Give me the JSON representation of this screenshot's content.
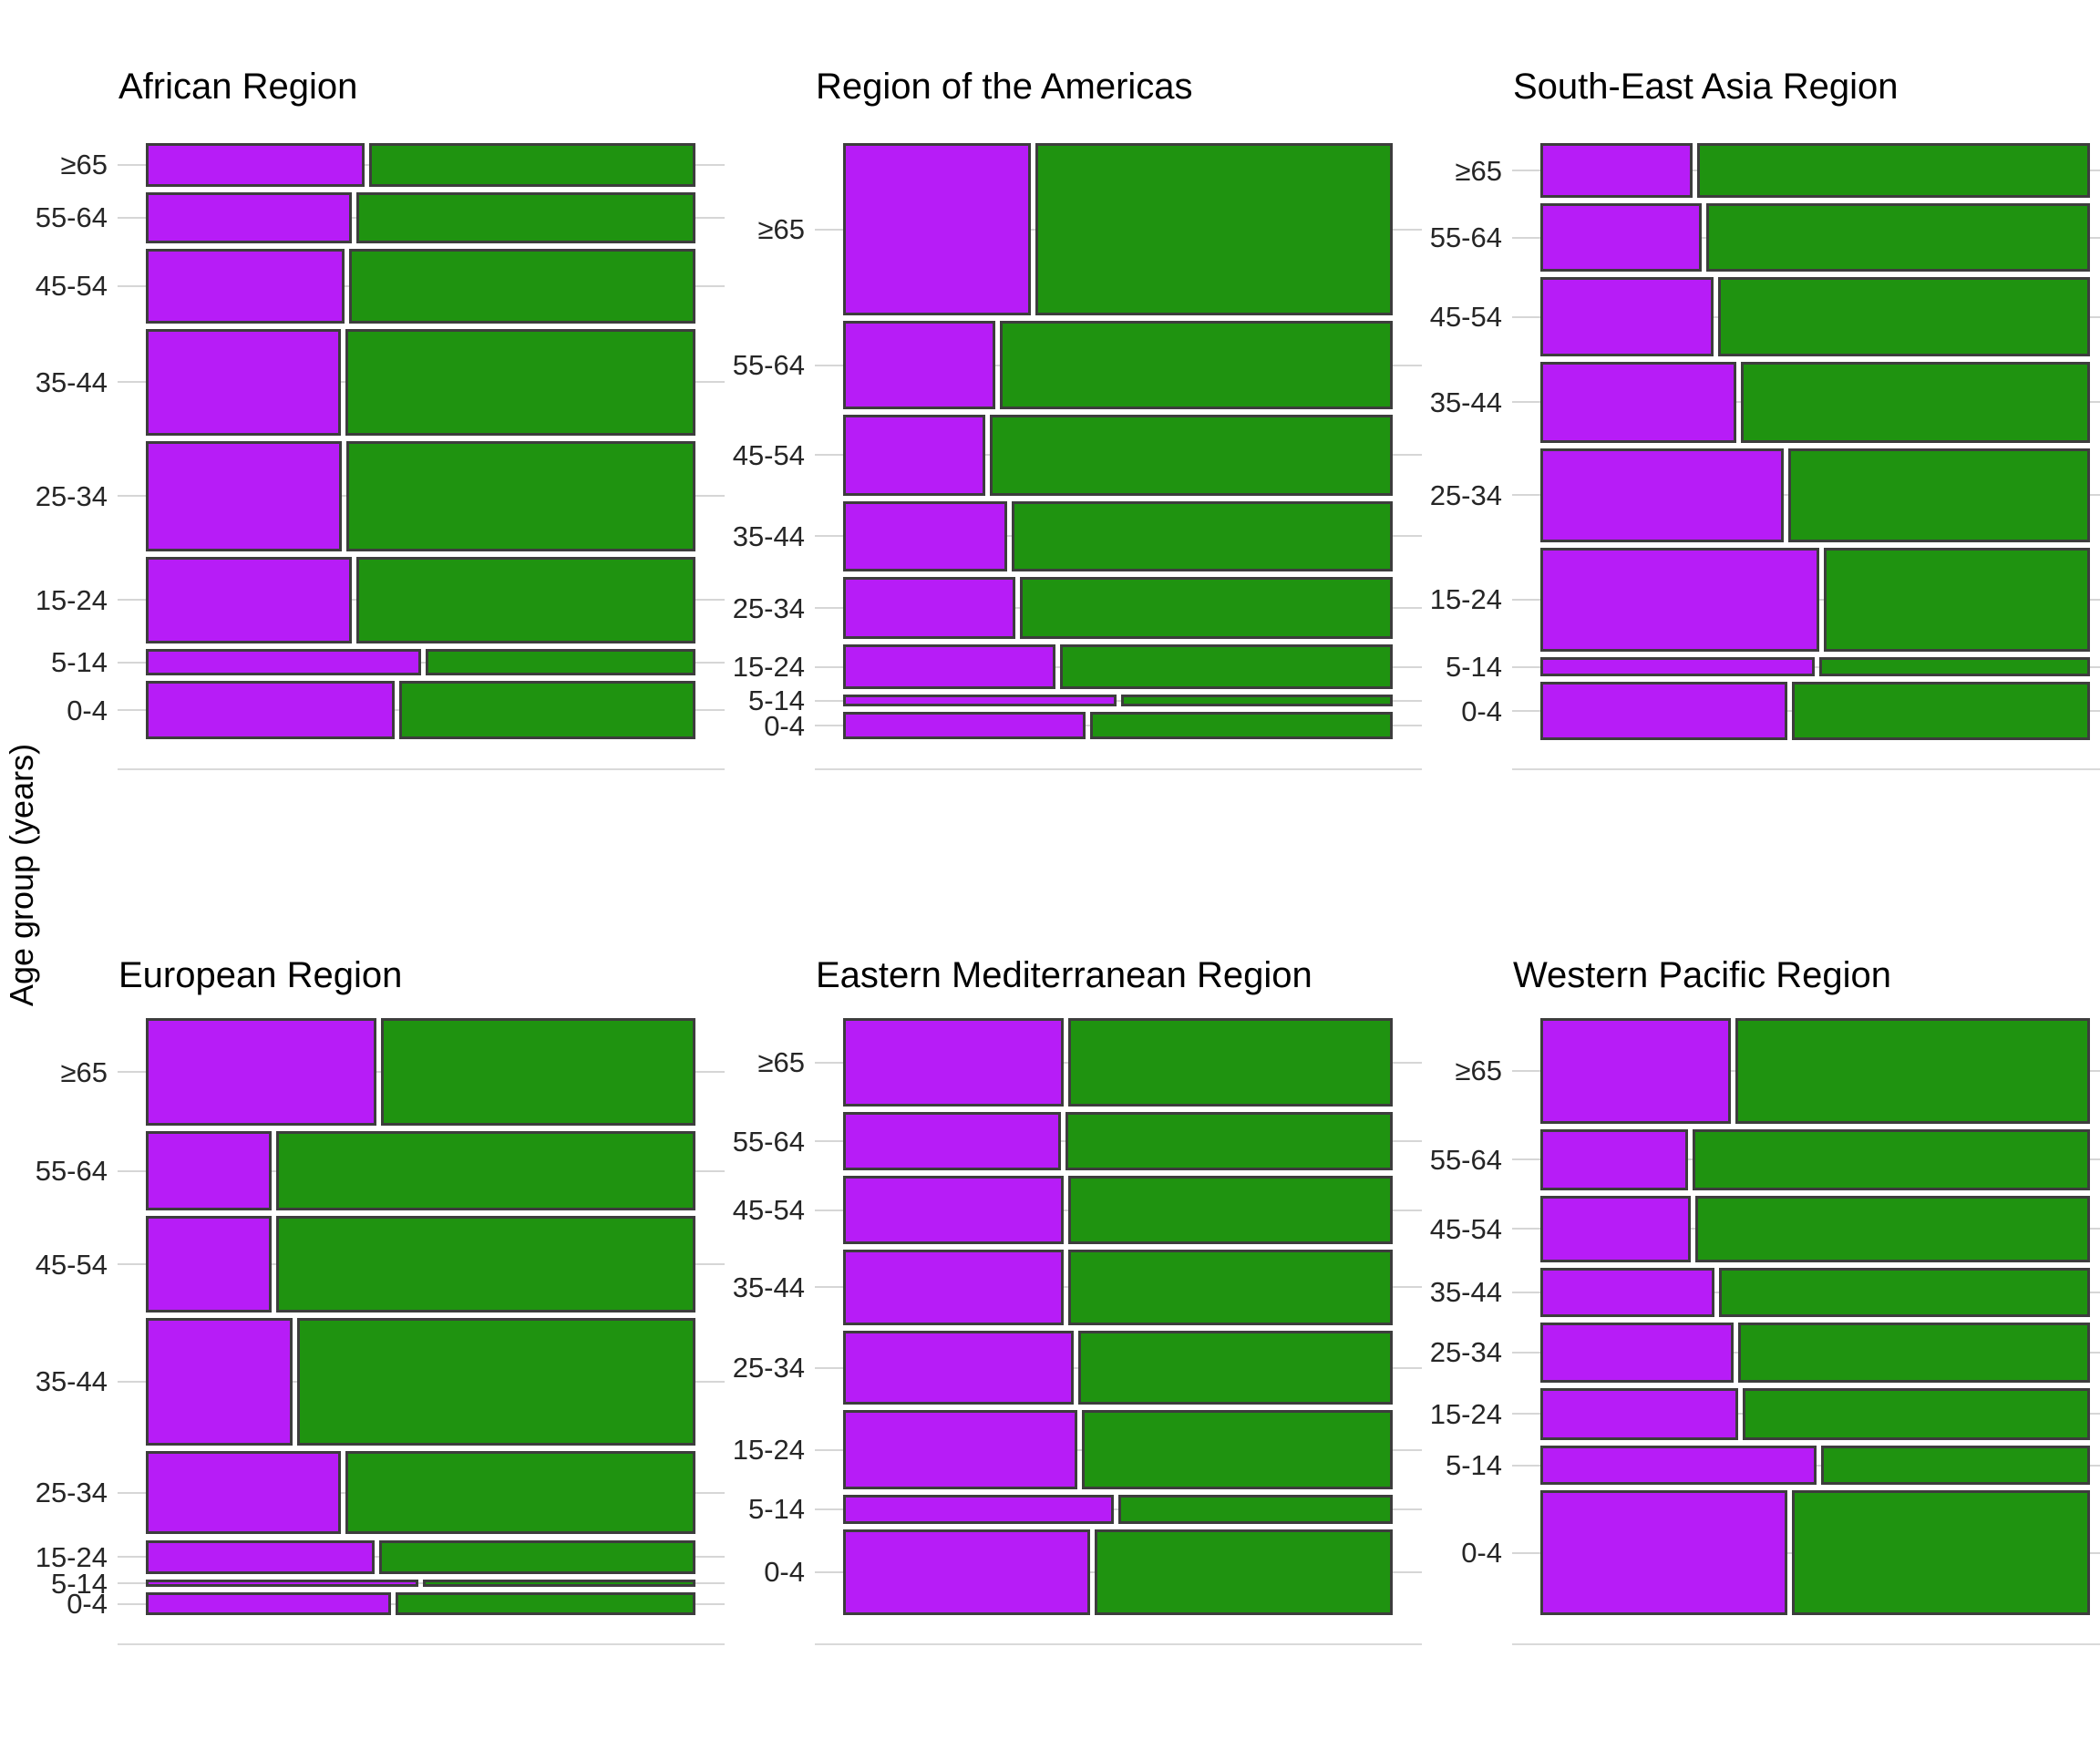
{
  "y_axis_label": "Age group (years)",
  "age_groups_top_to_bottom": [
    "≥65",
    "55-64",
    "45-54",
    "35-44",
    "25-34",
    "15-24",
    "5-14",
    "0-4"
  ],
  "colors": {
    "purple": "#b71cf7",
    "green": "#1f9310",
    "cell_border": "#3d3d3d",
    "gridline": "#d6d6d6",
    "title_text": "#000000",
    "tick_text": "#262626",
    "background": "#ffffff"
  },
  "chart_data": {
    "type": "mosaic",
    "description": "Six mosaic (spine) plots; bar height = proportion of cases in age group, horizontal split = purple vs green proportion within age group.",
    "ylabel": "Age group (years)",
    "grid": "horizontal stubs at each age-group center",
    "legend_position": "none",
    "regions": [
      {
        "name": "African Region",
        "bars": [
          {
            "age": "≥65",
            "height_frac": 0.078,
            "purple_frac": 0.398
          },
          {
            "age": "55-64",
            "height_frac": 0.091,
            "purple_frac": 0.375
          },
          {
            "age": "45-54",
            "height_frac": 0.134,
            "purple_frac": 0.362
          },
          {
            "age": "35-44",
            "height_frac": 0.191,
            "purple_frac": 0.355
          },
          {
            "age": "25-34",
            "height_frac": 0.197,
            "purple_frac": 0.356
          },
          {
            "age": "15-24",
            "height_frac": 0.156,
            "purple_frac": 0.375
          },
          {
            "age": "5-14",
            "height_frac": 0.047,
            "purple_frac": 0.5
          },
          {
            "age": "0-4",
            "height_frac": 0.105,
            "purple_frac": 0.452
          }
        ]
      },
      {
        "name": "Region of the Americas",
        "bars": [
          {
            "age": "≥65",
            "height_frac": 0.309,
            "purple_frac": 0.341
          },
          {
            "age": "55-64",
            "height_frac": 0.157,
            "purple_frac": 0.277
          },
          {
            "age": "45-54",
            "height_frac": 0.145,
            "purple_frac": 0.258
          },
          {
            "age": "35-44",
            "height_frac": 0.126,
            "purple_frac": 0.299
          },
          {
            "age": "25-34",
            "height_frac": 0.112,
            "purple_frac": 0.314
          },
          {
            "age": "15-24",
            "height_frac": 0.079,
            "purple_frac": 0.386
          },
          {
            "age": "5-14",
            "height_frac": 0.022,
            "purple_frac": 0.497
          },
          {
            "age": "0-4",
            "height_frac": 0.049,
            "purple_frac": 0.441
          }
        ]
      },
      {
        "name": "South-East Asia Region",
        "bars": [
          {
            "age": "≥65",
            "height_frac": 0.098,
            "purple_frac": 0.277
          },
          {
            "age": "55-64",
            "height_frac": 0.123,
            "purple_frac": 0.294
          },
          {
            "age": "45-54",
            "height_frac": 0.141,
            "purple_frac": 0.315
          },
          {
            "age": "35-44",
            "height_frac": 0.145,
            "purple_frac": 0.356
          },
          {
            "age": "25-34",
            "height_frac": 0.168,
            "purple_frac": 0.442
          },
          {
            "age": "15-24",
            "height_frac": 0.186,
            "purple_frac": 0.508
          },
          {
            "age": "5-14",
            "height_frac": 0.035,
            "purple_frac": 0.499
          },
          {
            "age": "0-4",
            "height_frac": 0.104,
            "purple_frac": 0.449
          }
        ]
      },
      {
        "name": "European Region",
        "bars": [
          {
            "age": "≥65",
            "height_frac": 0.193,
            "purple_frac": 0.42
          },
          {
            "age": "55-64",
            "height_frac": 0.141,
            "purple_frac": 0.229
          },
          {
            "age": "45-54",
            "height_frac": 0.174,
            "purple_frac": 0.229
          },
          {
            "age": "35-44",
            "height_frac": 0.227,
            "purple_frac": 0.267
          },
          {
            "age": "25-34",
            "height_frac": 0.15,
            "purple_frac": 0.355
          },
          {
            "age": "15-24",
            "height_frac": 0.061,
            "purple_frac": 0.416
          },
          {
            "age": "5-14",
            "height_frac": 0.014,
            "purple_frac": 0.496
          },
          {
            "age": "0-4",
            "height_frac": 0.04,
            "purple_frac": 0.446
          }
        ]
      },
      {
        "name": "Eastern Mediterranean Region",
        "bars": [
          {
            "age": "≥65",
            "height_frac": 0.159,
            "purple_frac": 0.402
          },
          {
            "age": "55-64",
            "height_frac": 0.104,
            "purple_frac": 0.397
          },
          {
            "age": "45-54",
            "height_frac": 0.122,
            "purple_frac": 0.402
          },
          {
            "age": "35-44",
            "height_frac": 0.135,
            "purple_frac": 0.402
          },
          {
            "age": "25-34",
            "height_frac": 0.133,
            "purple_frac": 0.419
          },
          {
            "age": "15-24",
            "height_frac": 0.141,
            "purple_frac": 0.426
          },
          {
            "age": "5-14",
            "height_frac": 0.052,
            "purple_frac": 0.492
          },
          {
            "age": "0-4",
            "height_frac": 0.154,
            "purple_frac": 0.45
          }
        ]
      },
      {
        "name": "Western Pacific Region",
        "bars": [
          {
            "age": "≥65",
            "height_frac": 0.189,
            "purple_frac": 0.346
          },
          {
            "age": "55-64",
            "height_frac": 0.109,
            "purple_frac": 0.269
          },
          {
            "age": "45-54",
            "height_frac": 0.12,
            "purple_frac": 0.274
          },
          {
            "age": "35-44",
            "height_frac": 0.087,
            "purple_frac": 0.316
          },
          {
            "age": "25-34",
            "height_frac": 0.108,
            "purple_frac": 0.351
          },
          {
            "age": "15-24",
            "height_frac": 0.093,
            "purple_frac": 0.36
          },
          {
            "age": "5-14",
            "height_frac": 0.071,
            "purple_frac": 0.502
          },
          {
            "age": "0-4",
            "height_frac": 0.223,
            "purple_frac": 0.45
          }
        ]
      }
    ]
  }
}
